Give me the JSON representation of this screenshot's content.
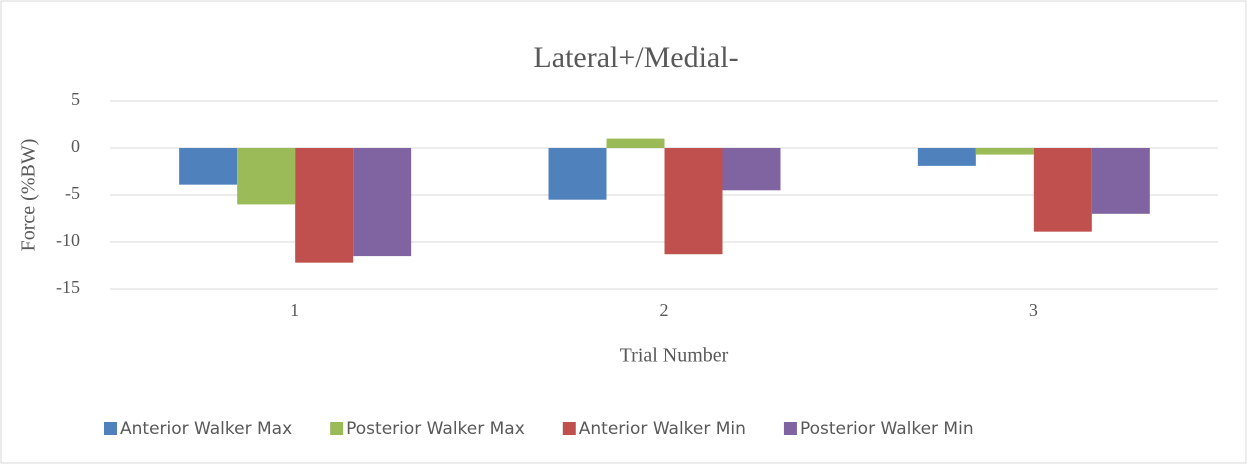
{
  "chart_data": {
    "type": "bar",
    "title": "Lateral+/Medial-",
    "x_label": "Trial Number",
    "y_label": "Force (%BW)",
    "categories": [
      "1",
      "2",
      "3"
    ],
    "series": [
      {
        "name": "Anterior Walker Max",
        "color": "#4f81bd",
        "values": [
          -3.9,
          -5.5,
          -1.9
        ]
      },
      {
        "name": "Posterior Walker Max",
        "color": "#9bbb59",
        "values": [
          -6.0,
          1.0,
          -0.7
        ]
      },
      {
        "name": "Anterior Walker Min",
        "color": "#c0504d",
        "values": [
          -12.2,
          -11.3,
          -8.9
        ]
      },
      {
        "name": "Posterior Walker Min",
        "color": "#8064a2",
        "values": [
          -11.5,
          -4.5,
          -7.0
        ]
      }
    ],
    "ylim": [
      -15,
      5
    ],
    "yticks": [
      -15,
      -10,
      -5,
      0,
      5
    ],
    "grid": true,
    "legend": "bottom"
  }
}
